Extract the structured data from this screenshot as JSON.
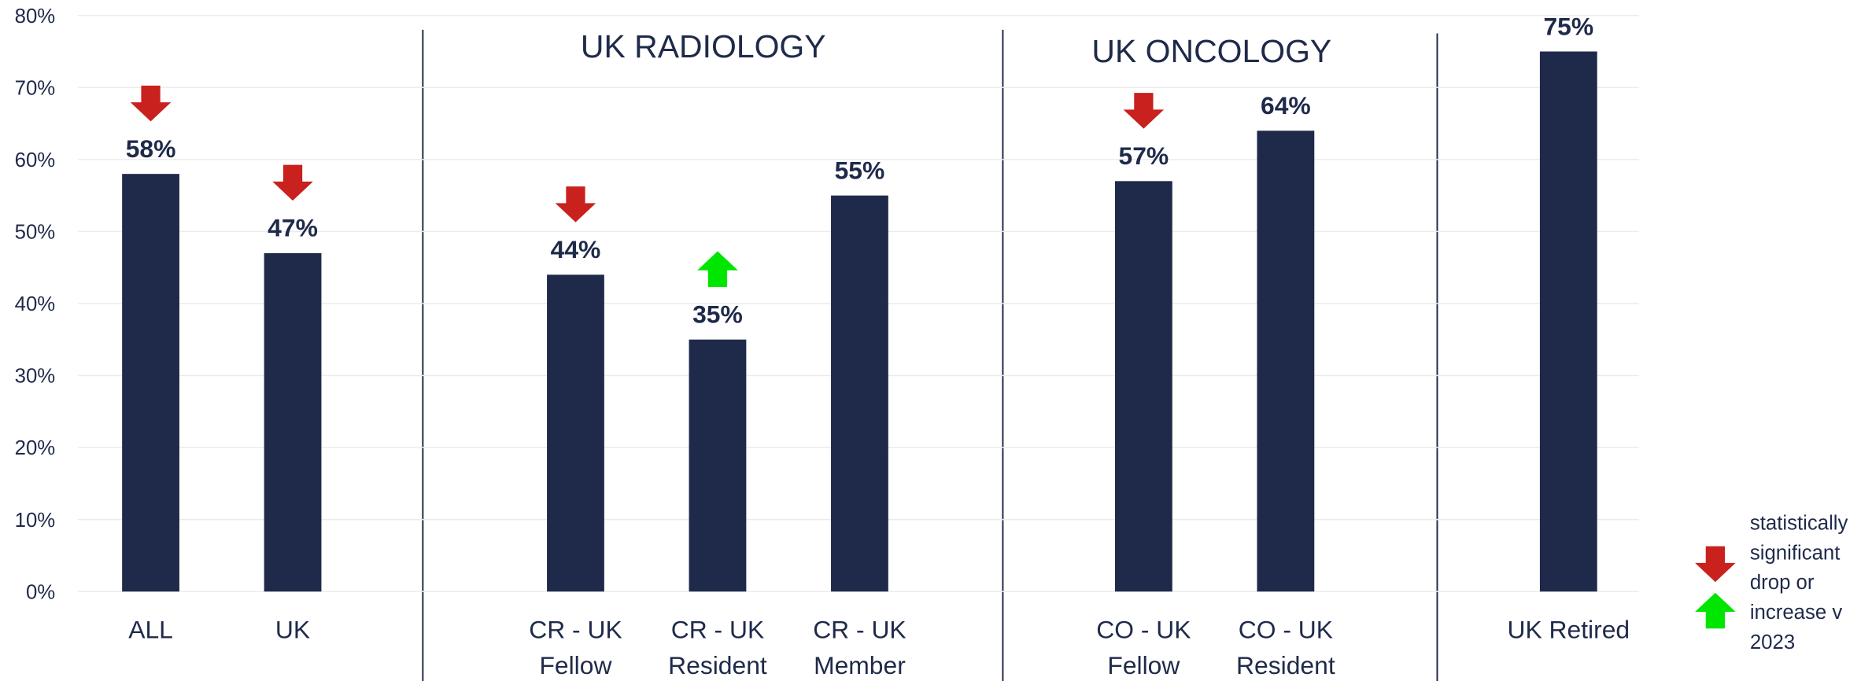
{
  "chart_data": {
    "type": "bar",
    "categories": [
      "ALL",
      "UK",
      "CR - UK\nFellow",
      "CR - UK\nResident",
      "CR - UK\nMember",
      "CO - UK\nFellow",
      "CO - UK\nResident",
      "UK Retired"
    ],
    "values": [
      58,
      47,
      44,
      35,
      55,
      57,
      64,
      75
    ],
    "value_labels": [
      "58%",
      "47%",
      "44%",
      "35%",
      "55%",
      "57%",
      "64%",
      "75%"
    ],
    "significance": [
      "down",
      "down",
      "down",
      "up",
      null,
      "down",
      null,
      null
    ],
    "color": "#1f2a4a",
    "down_color": "#c9211e",
    "up_color": "#00e600",
    "groups": [
      "UK RADIOLOGY",
      "UK ONCOLOGY"
    ],
    "legend": "statistically\nsignificant\ndrop or\nincrease v\n2023",
    "ylim": [
      0,
      80
    ],
    "yticks": [
      {
        "value": 0,
        "label": "0%"
      },
      {
        "value": 10,
        "label": "10%"
      },
      {
        "value": 20,
        "label": "20%"
      },
      {
        "value": 30,
        "label": "30%"
      },
      {
        "value": 40,
        "label": "40%"
      },
      {
        "value": 50,
        "label": "50%"
      },
      {
        "value": 60,
        "label": "60%"
      },
      {
        "value": 70,
        "label": "70%"
      },
      {
        "value": 80,
        "label": "80%"
      }
    ],
    "grid": true
  }
}
